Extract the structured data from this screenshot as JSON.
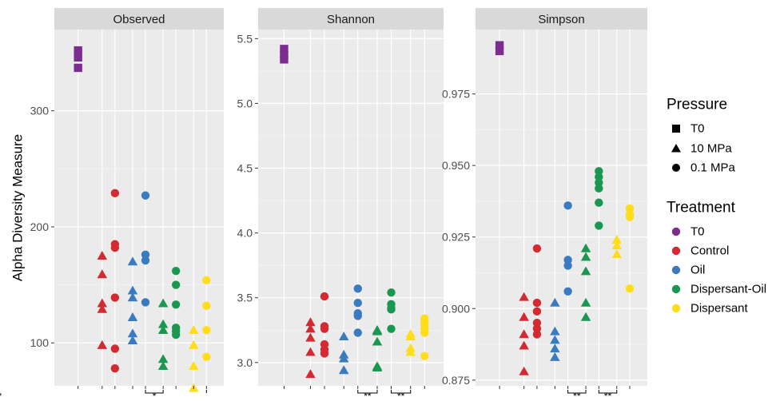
{
  "chart_data": {
    "type": "scatter",
    "ylabel": "Alpha Diversity Measure",
    "xlabel": "",
    "grid": true,
    "legend_position": "right",
    "treatment_colors": {
      "T0": "#7B2D8E",
      "Control": "#D42A32",
      "Oil": "#3A7BBF",
      "Dispersant-Oil": "#1A9850",
      "Dispersant": "#FFDD1A"
    },
    "legends": [
      {
        "title": "Pressure",
        "items": [
          {
            "label": "T0",
            "shape": "square"
          },
          {
            "label": "10 MPa",
            "shape": "triangle"
          },
          {
            "label": "0.1 MPa",
            "shape": "circle"
          }
        ]
      },
      {
        "title": "Treatment",
        "items": [
          {
            "label": "T0",
            "color": "#7B2D8E"
          },
          {
            "label": "Control",
            "color": "#D42A32"
          },
          {
            "label": "Oil",
            "color": "#3A7BBF"
          },
          {
            "label": "Dispersant-Oil",
            "color": "#1A9850"
          },
          {
            "label": "Dispersant",
            "color": "#FFDD1A"
          }
        ]
      }
    ],
    "panels": [
      {
        "title": "Observed",
        "ylim": [
          63,
          370
        ],
        "yticks": [
          100,
          200,
          300
        ],
        "yticklabels": [
          "100",
          "200",
          "300"
        ],
        "groups": [
          {
            "treatment": "T0",
            "shape": "square",
            "values": [
              352,
              346,
              337
            ]
          },
          {
            "treatment": "Control",
            "shape": "triangle",
            "values": [
              175,
              159,
              134,
              129,
              98
            ]
          },
          {
            "treatment": "Control",
            "shape": "circle",
            "values": [
              229,
              185,
              182,
              139,
              95,
              78
            ]
          },
          {
            "treatment": "Oil",
            "shape": "triangle",
            "values": [
              170,
              145,
              139,
              122,
              108,
              102
            ]
          },
          {
            "treatment": "Oil",
            "shape": "circle",
            "values": [
              227,
              176,
              171,
              135
            ]
          },
          {
            "treatment": "Dispersant-Oil",
            "shape": "triangle",
            "values": [
              134,
              116,
              111,
              86,
              80
            ]
          },
          {
            "treatment": "Dispersant-Oil",
            "shape": "circle",
            "values": [
              162,
              150,
              133,
              113,
              110,
              107
            ]
          },
          {
            "treatment": "Dispersant",
            "shape": "triangle",
            "values": [
              111,
              98,
              80,
              61
            ]
          },
          {
            "treatment": "Dispersant",
            "shape": "circle",
            "values": [
              154,
              132,
              111,
              88
            ]
          }
        ],
        "significance": [
          {
            "between": [
              5,
              6
            ],
            "label": "*"
          },
          {
            "between": [
              9,
              10
            ],
            "label": "*"
          }
        ]
      },
      {
        "title": "Shannon",
        "ylim": [
          2.82,
          5.57
        ],
        "yticks": [
          3.0,
          3.5,
          4.0,
          4.5,
          5.0,
          5.5
        ],
        "yticklabels": [
          "3.0",
          "3.5",
          "4.0",
          "4.5",
          "5.0",
          "5.5"
        ],
        "groups": [
          {
            "treatment": "T0",
            "shape": "square",
            "values": [
              5.42,
              5.37,
              5.34
            ]
          },
          {
            "treatment": "Control",
            "shape": "triangle",
            "values": [
              3.31,
              3.26,
              3.19,
              3.08,
              2.91
            ]
          },
          {
            "treatment": "Control",
            "shape": "circle",
            "values": [
              3.51,
              3.28,
              3.26,
              3.14,
              3.1,
              3.07
            ]
          },
          {
            "treatment": "Oil",
            "shape": "triangle",
            "values": [
              3.2,
              3.06,
              3.03,
              2.94
            ]
          },
          {
            "treatment": "Oil",
            "shape": "circle",
            "values": [
              3.57,
              3.46,
              3.38,
              3.36,
              3.23
            ]
          },
          {
            "treatment": "Dispersant-Oil",
            "shape": "triangle",
            "values": [
              3.25,
              3.24,
              3.16,
              2.97,
              2.96
            ]
          },
          {
            "treatment": "Dispersant-Oil",
            "shape": "circle",
            "values": [
              3.54,
              3.45,
              3.42,
              3.41,
              3.26
            ]
          },
          {
            "treatment": "Dispersant",
            "shape": "triangle",
            "values": [
              3.22,
              3.2,
              3.11,
              3.08
            ]
          },
          {
            "treatment": "Dispersant",
            "shape": "circle",
            "values": [
              3.34,
              3.32,
              3.29,
              3.26,
              3.23,
              3.05
            ]
          }
        ],
        "significance": [
          {
            "between": [
              5,
              6
            ],
            "label": "**"
          },
          {
            "between": [
              7,
              8
            ],
            "label": "**"
          }
        ]
      },
      {
        "title": "Simpson",
        "ylim": [
          0.873,
          0.9975
        ],
        "yticks": [
          0.875,
          0.9,
          0.925,
          0.95,
          0.975
        ],
        "yticklabels": [
          "0.875",
          "0.900",
          "0.925",
          "0.950",
          "0.975"
        ],
        "groups": [
          {
            "treatment": "T0",
            "shape": "square",
            "values": [
              0.992,
              0.99
            ]
          },
          {
            "treatment": "Control",
            "shape": "triangle",
            "values": [
              0.904,
              0.897,
              0.891,
              0.887,
              0.878
            ]
          },
          {
            "treatment": "Control",
            "shape": "circle",
            "values": [
              0.921,
              0.902,
              0.899,
              0.895,
              0.893,
              0.891
            ]
          },
          {
            "treatment": "Oil",
            "shape": "triangle",
            "values": [
              0.902,
              0.892,
              0.889,
              0.886,
              0.883
            ]
          },
          {
            "treatment": "Oil",
            "shape": "circle",
            "values": [
              0.936,
              0.917,
              0.915,
              0.906
            ]
          },
          {
            "treatment": "Dispersant-Oil",
            "shape": "triangle",
            "values": [
              0.921,
              0.918,
              0.913,
              0.902,
              0.897
            ]
          },
          {
            "treatment": "Dispersant-Oil",
            "shape": "circle",
            "values": [
              0.948,
              0.946,
              0.944,
              0.942,
              0.937,
              0.929
            ]
          },
          {
            "treatment": "Dispersant",
            "shape": "triangle",
            "values": [
              0.924,
              0.922,
              0.919
            ]
          },
          {
            "treatment": "Dispersant",
            "shape": "circle",
            "values": [
              0.935,
              0.933,
              0.932,
              0.907
            ]
          }
        ],
        "significance": [
          {
            "between": [
              5,
              6
            ],
            "label": "**"
          },
          {
            "between": [
              7,
              8
            ],
            "label": "**"
          }
        ]
      }
    ]
  }
}
